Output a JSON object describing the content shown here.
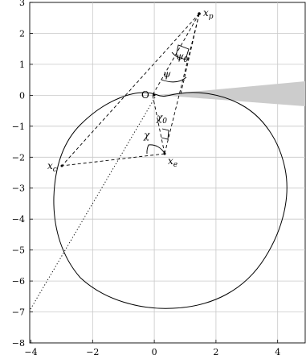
{
  "axes": {
    "x_ticks": [
      "−4",
      "−2",
      "0",
      "2",
      "4"
    ],
    "y_ticks": [
      "3",
      "2",
      "1",
      "0",
      "−1",
      "−2",
      "−3",
      "−4",
      "−5",
      "−6",
      "−7",
      "−8"
    ],
    "x_range": [
      -4,
      4.9
    ],
    "y_range": [
      -8,
      3
    ]
  },
  "points": {
    "origin": {
      "label": "O",
      "x": 0,
      "y": 0
    },
    "xp": {
      "label": "x",
      "sub": "p",
      "x": 1.5,
      "y": 2.6
    },
    "xe": {
      "label": "x",
      "sub": "e",
      "x": 0.35,
      "y": -2.0
    },
    "xc": {
      "label": "x",
      "sub": "c",
      "x": -2.95,
      "y": -2.3
    }
  },
  "angles": {
    "psi": "ψ",
    "psi0": "ψ",
    "psi0_sub": "0",
    "chi": "χ",
    "chi0": "χ",
    "chi0_sub": "0"
  },
  "colors": {
    "wedge": "#cccccc",
    "grid": "#c8c8c8",
    "ink": "#000000"
  }
}
